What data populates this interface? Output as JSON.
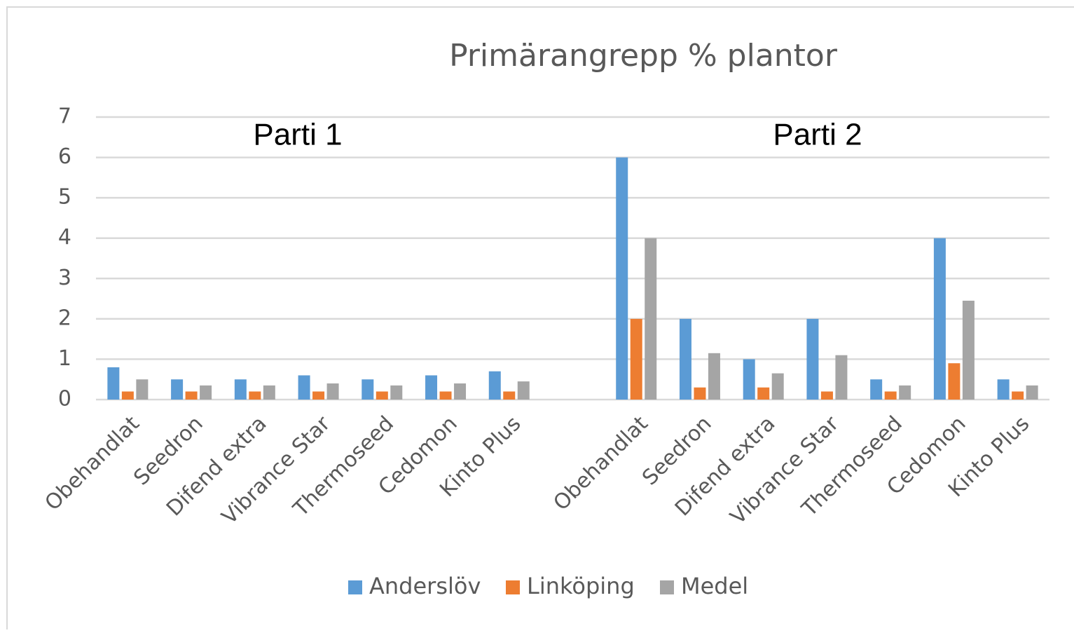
{
  "chart_data": {
    "type": "bar",
    "title": "Primärangrepp % plantor",
    "annotations": [
      "Parti 1",
      "Parti 2"
    ],
    "categories": [
      "Obehandlat",
      "Seedron",
      "Difend extra",
      "Vibrance Star",
      "Thermoseed",
      "Cedomon",
      "Kinto Plus",
      null,
      "Obehandlat",
      "Seedron",
      "Difend extra",
      "Vibrance Star",
      "Thermoseed",
      "Cedomon",
      "Kinto Plus"
    ],
    "series": [
      {
        "name": "Anderslöv",
        "color": "#5b9bd5",
        "values": [
          0.8,
          0.5,
          0.5,
          0.6,
          0.5,
          0.6,
          0.7,
          null,
          6,
          2,
          1,
          2,
          0.5,
          4,
          0.5
        ]
      },
      {
        "name": "Linköping",
        "color": "#ed7d31",
        "values": [
          0.2,
          0.2,
          0.2,
          0.2,
          0.2,
          0.2,
          0.2,
          null,
          2,
          0.3,
          0.3,
          0.2,
          0.2,
          0.9,
          0.2
        ]
      },
      {
        "name": "Medel",
        "color": "#a5a5a5",
        "values": [
          0.5,
          0.35,
          0.35,
          0.4,
          0.35,
          0.4,
          0.45,
          null,
          4,
          1.15,
          0.65,
          1.1,
          0.35,
          2.45,
          0.35
        ]
      }
    ],
    "ylim": [
      0,
      7
    ],
    "yticks": [
      0,
      1,
      2,
      3,
      4,
      5,
      6,
      7
    ],
    "grid": true,
    "legend": "bottom"
  }
}
